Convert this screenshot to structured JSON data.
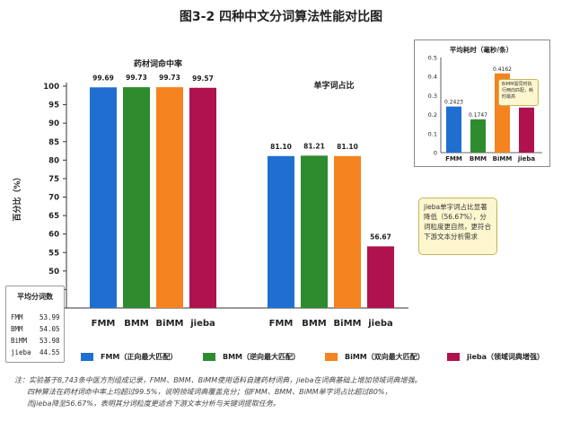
{
  "title": "图3-2 四种中文分词算法性能对比图",
  "chart_data": {
    "type": "bar",
    "ylabel": "百分比（%）",
    "ylim": [
      40,
      100
    ],
    "yticks": [
      40,
      45,
      50,
      55,
      60,
      65,
      70,
      75,
      80,
      85,
      90,
      95,
      100
    ],
    "grid": false,
    "groups": [
      {
        "title": "药材词命中率",
        "categories": [
          "FMM",
          "BMM",
          "BiMM",
          "jieba"
        ],
        "values": [
          99.69,
          99.73,
          99.73,
          99.57
        ],
        "labels": [
          "99.69",
          "99.73",
          "99.73",
          "99.57"
        ]
      },
      {
        "title": "单字词占比",
        "categories": [
          "FMM",
          "BMM",
          "BiMM",
          "jieba"
        ],
        "values": [
          81.1,
          81.21,
          81.1,
          56.67
        ],
        "labels": [
          "81.10",
          "81.21",
          "81.10",
          "56.67"
        ]
      }
    ],
    "legend_position": "bottom",
    "legend": [
      {
        "label": "FMM（正向最大匹配）",
        "color": "#1f6fd1"
      },
      {
        "label": "BMM（逆向最大匹配）",
        "color": "#2e8b2e"
      },
      {
        "label": "BiMM（双向最大匹配）",
        "color": "#f5831f"
      },
      {
        "label": "jieba（领域词典增强）",
        "color": "#b0124f"
      }
    ],
    "inset": {
      "type": "bar",
      "title": "平均耗时（毫秒/条）",
      "categories": [
        "FMM",
        "BMM",
        "BiMM",
        "jieba"
      ],
      "values": [
        0.2423,
        0.1747,
        0.4162,
        0.2369
      ],
      "labels": [
        "0.2423",
        "0.1747",
        "0.4162",
        "0.2369"
      ],
      "ylim": [
        0,
        0.5
      ],
      "yticks": [
        "0",
        "0.1",
        "0.2",
        "0.3",
        "0.4",
        "0.5"
      ],
      "note": "BiMM需同时执行两向匹配，耗时最高"
    },
    "annotation": "jieba单字词占比显著降低（56.67%），分词粒度更自然，更符合下游文本分析需求"
  },
  "colors": {
    "fmm": "#1f6fd1",
    "bmm": "#2e8b2e",
    "bimm": "#f5831f",
    "jieba": "#b0124f"
  },
  "stats": {
    "title": "平均分词数",
    "rows": [
      {
        "name": "FMM",
        "value": "53.99"
      },
      {
        "name": "BMM",
        "value": "54.05"
      },
      {
        "name": "BiMM",
        "value": "53.98"
      },
      {
        "name": "jieba",
        "value": "44.55"
      }
    ]
  },
  "footnote": [
    "注：实验基于8,743条中医方剂组成记录，FMM、BMM、BiMM使用语料自建药材词典，jieba在词典基础上增加领域词典增强。",
    "四种算法在药材词命中率上均超过99.5%，说明领域词典覆盖充分；但FMM、BMM、BiMM单字词占比超过80%，",
    "而jieba降至56.67%，表明其分词粒度更适合下游文本分析与关键词提取任务。"
  ]
}
